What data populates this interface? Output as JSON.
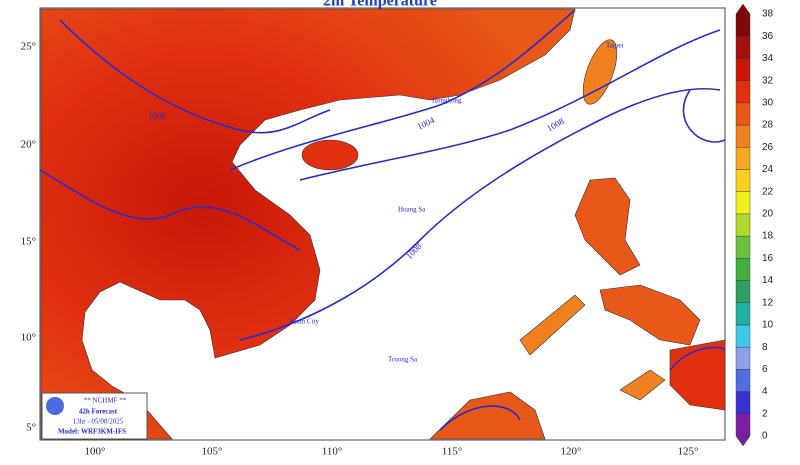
{
  "title": "2m Temperature",
  "longitude_labels": [
    "100°",
    "105°",
    "110°",
    "115°",
    "120°",
    "125°"
  ],
  "latitude_labels": [
    "25°",
    "20°",
    "15°",
    "10°",
    "5°"
  ],
  "colorbar": {
    "ticks": [
      0,
      2,
      4,
      6,
      8,
      10,
      12,
      14,
      16,
      18,
      20,
      22,
      24,
      26,
      28,
      30,
      32,
      34,
      36,
      38
    ],
    "colors": [
      "#7a1fa2",
      "#3a2fd0",
      "#4f6fe0",
      "#8fa0e8",
      "#40c8e8",
      "#20b0a0",
      "#30a060",
      "#40b040",
      "#70c040",
      "#b0d830",
      "#f0f020",
      "#f8d020",
      "#f8a820",
      "#f08020",
      "#e85818",
      "#e03010",
      "#c81808",
      "#a81010",
      "#800808"
    ]
  },
  "isobar_labels": [
    "1000",
    "1004",
    "1008",
    "1008"
  ],
  "places": [
    "Hongkong",
    "Taipei",
    "Hoang Sa",
    "Truong Sa",
    "Minh City"
  ],
  "info_box": {
    "agency": "** NCHMF **",
    "forecast": "42h Forecast",
    "time": "13hr - 05/08/2025",
    "model": "Model: WRF3KM-IFS"
  }
}
